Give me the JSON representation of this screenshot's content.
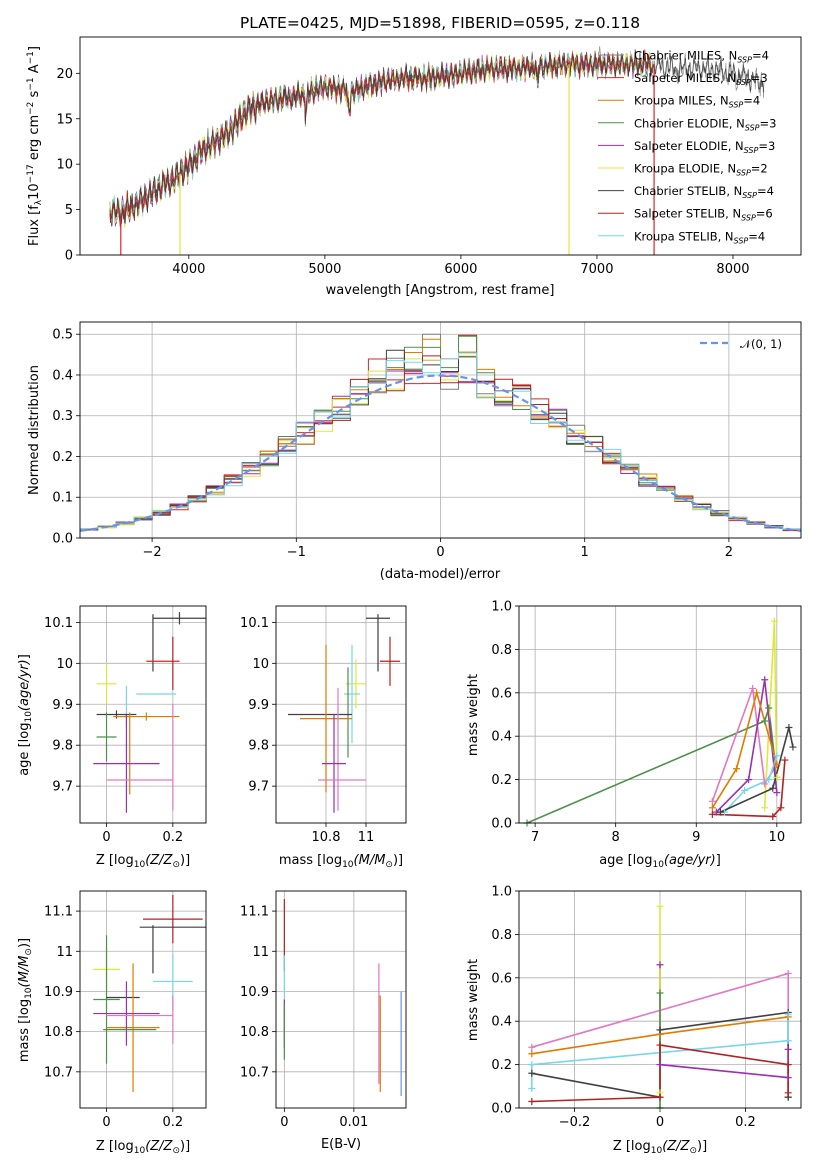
{
  "page": {
    "title": "PLATE=0425, MJD=51898, FIBERID=0595, z=0.118"
  },
  "models": [
    {
      "id": "cm",
      "name": "Chabrier MILES",
      "nssp": "4",
      "color": "#7f7f7f"
    },
    {
      "id": "sm",
      "name": "Salpeter MILES",
      "nssp": "3",
      "color": "#d62728"
    },
    {
      "id": "km",
      "name": "Kroupa MILES",
      "nssp": "4",
      "color": "#e07a00"
    },
    {
      "id": "ce",
      "name": "Chabrier ELODIE",
      "nssp": "3",
      "color": "#4f8f4f"
    },
    {
      "id": "se",
      "name": "Salpeter ELODIE",
      "nssp": "3",
      "color": "#9b30b0"
    },
    {
      "id": "ke",
      "name": "Kroupa ELODIE",
      "nssp": "2",
      "color": "#dce83a"
    },
    {
      "id": "cs",
      "name": "Chabrier STELIB",
      "nssp": "4",
      "color": "#404040"
    },
    {
      "id": "ss",
      "name": "Salpeter STELIB",
      "nssp": "6",
      "color": "#b22222"
    },
    {
      "id": "ks",
      "name": "Kroupa STELIB",
      "nssp": "4",
      "color": "#76d7ea"
    }
  ],
  "chart_data": [
    {
      "id": "spectrum",
      "type": "line",
      "xlabel": "wavelength [Angstrom, rest frame]",
      "ylabel": "Flux [f",
      "xlim": [
        3200,
        8500
      ],
      "ylim": [
        0,
        24
      ],
      "xticks": [
        4000,
        5000,
        6000,
        7000,
        8000
      ],
      "yticks": [
        0,
        5,
        10,
        15,
        20
      ],
      "legend": "top-right",
      "envelope": {
        "x": [
          3400,
          3500,
          3600,
          3700,
          3800,
          3900,
          4000,
          4100,
          4200,
          4300,
          4400,
          4500,
          4600,
          4800,
          5000,
          5200,
          5400,
          5600,
          5800,
          6000,
          6200,
          6400,
          6600,
          6800,
          7000,
          7200,
          7400,
          7600,
          7800,
          8000,
          8200
        ],
        "y": [
          5.0,
          4.6,
          5.5,
          6.5,
          7.5,
          8.5,
          9.8,
          11.5,
          12.5,
          13.5,
          15.5,
          16.5,
          17.0,
          17.5,
          18.5,
          18.0,
          19.0,
          19.5,
          19.5,
          20.0,
          20.5,
          20.5,
          20.8,
          21.0,
          21.0,
          21.0,
          21.0,
          20.5,
          20.5,
          20.0,
          19.0
        ]
      },
      "dropouts": [
        {
          "x": 3500,
          "series": "Salpeter MILES"
        },
        {
          "x": 3935,
          "series": "Kroupa ELODIE"
        },
        {
          "x": 6795,
          "series": "Kroupa ELODIE"
        },
        {
          "x": 7420,
          "series": "Salpeter MILES"
        }
      ]
    },
    {
      "id": "residuals",
      "type": "line",
      "xlabel": "(data-model)/error",
      "ylabel": "Normed distribution",
      "xlim": [
        -2.5,
        2.5
      ],
      "ylim": [
        0,
        0.53
      ],
      "xticks": [
        -2,
        -1,
        0,
        1,
        2
      ],
      "yticks": [
        0.0,
        0.1,
        0.2,
        0.3,
        0.4,
        0.5
      ],
      "grid": true,
      "legend": "top-right",
      "legend_label": "𝒩(0, 1)",
      "reference_curve": {
        "name": "𝒩(0, 1)",
        "mean": 0,
        "sigma": 1,
        "color": "#6495ed"
      },
      "hist_bin_width": 0.125
    },
    {
      "id": "age_vs_Z",
      "type": "scatter",
      "xlabel": "Z [log",
      "ylabel": "age  [log",
      "xlim": [
        -0.08,
        0.3
      ],
      "ylim": [
        9.61,
        10.14
      ],
      "xticks": [
        0.0,
        0.2
      ],
      "yticks": [
        9.7,
        9.8,
        9.9,
        10.0,
        10.1
      ],
      "grid": true,
      "points": [
        {
          "x": 0.22,
          "y": 10.11,
          "xerr": 0.08,
          "yerr": 0.015,
          "color": "#404040"
        },
        {
          "x": 0.14,
          "y": 10.05,
          "xerr": 0.001,
          "yerr": 0.07,
          "color": "#404040"
        },
        {
          "x": 0.17,
          "y": 10.005,
          "xerr": 0.05,
          "yerr": 0.001,
          "color": "#d62728"
        },
        {
          "x": 0.2,
          "y": 10.0,
          "xerr": 0.001,
          "yerr": 0.065,
          "color": "#b22222"
        },
        {
          "x": 0.0,
          "y": 9.95,
          "xerr": 0.03,
          "yerr": 0.05,
          "color": "#dce83a"
        },
        {
          "x": 0.15,
          "y": 9.925,
          "xerr": 0.06,
          "yerr": 0.001,
          "color": "#76d7ea"
        },
        {
          "x": 0.06,
          "y": 9.895,
          "xerr": 0.001,
          "yerr": 0.05,
          "color": "#76d7ea"
        },
        {
          "x": 0.03,
          "y": 9.875,
          "xerr": 0.06,
          "yerr": 0.01,
          "color": "#404040"
        },
        {
          "x": 0.0,
          "y": 9.82,
          "xerr": 0.03,
          "yerr": 0.06,
          "color": "#4f8f4f"
        },
        {
          "x": 0.12,
          "y": 9.87,
          "xerr": 0.1,
          "yerr": 0.01,
          "color": "#e07a00"
        },
        {
          "x": 0.07,
          "y": 9.78,
          "xerr": 0.001,
          "yerr": 0.1,
          "color": "#e07a00"
        },
        {
          "x": 0.2,
          "y": 9.77,
          "xerr": 0.001,
          "yerr": 0.13,
          "color": "#e377c2"
        },
        {
          "x": 0.06,
          "y": 9.755,
          "xerr": 0.1,
          "yerr": 0.12,
          "color": "#9b30b0"
        },
        {
          "x": 0.1,
          "y": 9.715,
          "xerr": 0.1,
          "yerr": 0.001,
          "color": "#e377c2"
        }
      ]
    },
    {
      "id": "age_vs_mass",
      "type": "scatter",
      "xlabel": "mass [log",
      "ylabel": "",
      "xlim": [
        10.55,
        11.2
      ],
      "ylim": [
        9.61,
        10.14
      ],
      "xticks": [
        10.8,
        11.0
      ],
      "yticks": [
        9.7,
        9.8,
        9.9,
        10.0,
        10.1
      ],
      "grid": true,
      "points": [
        {
          "x": 11.06,
          "y": 10.11,
          "xerr": 0.06,
          "yerr": 0.001,
          "color": "#404040"
        },
        {
          "x": 11.06,
          "y": 10.05,
          "xerr": 0.001,
          "yerr": 0.07,
          "color": "#404040"
        },
        {
          "x": 11.12,
          "y": 10.005,
          "xerr": 0.05,
          "yerr": 0.06,
          "color": "#b22222"
        },
        {
          "x": 10.95,
          "y": 9.95,
          "xerr": 0.05,
          "yerr": 0.06,
          "color": "#dce83a"
        },
        {
          "x": 10.93,
          "y": 9.925,
          "xerr": 0.04,
          "yerr": 0.12,
          "color": "#76d7ea"
        },
        {
          "x": 10.91,
          "y": 9.88,
          "xerr": 0.001,
          "yerr": 0.11,
          "color": "#4f8f4f"
        },
        {
          "x": 10.77,
          "y": 9.875,
          "xerr": 0.16,
          "yerr": 0.001,
          "color": "#404040"
        },
        {
          "x": 10.8,
          "y": 9.865,
          "xerr": 0.13,
          "yerr": 0.18,
          "color": "#e07a00"
        },
        {
          "x": 10.86,
          "y": 9.79,
          "xerr": 0.001,
          "yerr": 0.15,
          "color": "#e377c2"
        },
        {
          "x": 10.84,
          "y": 9.755,
          "xerr": 0.06,
          "yerr": 0.12,
          "color": "#9b30b0"
        },
        {
          "x": 10.88,
          "y": 9.715,
          "xerr": 0.12,
          "yerr": 0.001,
          "color": "#e377c2"
        }
      ]
    },
    {
      "id": "weight_vs_age",
      "type": "line",
      "xlabel": "age  [log",
      "ylabel": "mass weight",
      "xlim": [
        6.8,
        10.3
      ],
      "ylim": [
        0.0,
        1.0
      ],
      "xticks": [
        7,
        8,
        9,
        10
      ],
      "yticks": [
        0.0,
        0.2,
        0.4,
        0.6,
        0.8,
        1.0
      ],
      "grid": true,
      "series": [
        {
          "color": "#4f8f4f",
          "x": [
            6.9,
            9.85,
            9.9,
            10.0
          ],
          "y": [
            0.0,
            0.47,
            0.53,
            0.21
          ]
        },
        {
          "color": "#dce83a",
          "x": [
            9.85,
            9.97,
            10.0
          ],
          "y": [
            0.07,
            0.93,
            0.21
          ]
        },
        {
          "color": "#e377c2",
          "x": [
            9.2,
            9.7,
            9.85,
            10.0
          ],
          "y": [
            0.1,
            0.62,
            0.18,
            0.27
          ]
        },
        {
          "color": "#9b30b0",
          "x": [
            9.25,
            9.65,
            9.85,
            10.0
          ],
          "y": [
            0.05,
            0.2,
            0.66,
            0.14
          ]
        },
        {
          "color": "#e07a00",
          "x": [
            9.2,
            9.5,
            9.75,
            10.0
          ],
          "y": [
            0.07,
            0.25,
            0.6,
            0.27
          ]
        },
        {
          "color": "#76d7ea",
          "x": [
            9.35,
            9.6,
            9.9,
            10.0
          ],
          "y": [
            0.05,
            0.15,
            0.2,
            0.31
          ]
        },
        {
          "color": "#404040",
          "x": [
            9.3,
            9.95,
            10.15,
            10.2
          ],
          "y": [
            0.05,
            0.16,
            0.44,
            0.35
          ]
        },
        {
          "color": "#b22222",
          "x": [
            9.2,
            9.95,
            10.05,
            10.1
          ],
          "y": [
            0.04,
            0.03,
            0.07,
            0.29
          ]
        }
      ]
    },
    {
      "id": "mass_vs_Z",
      "type": "scatter",
      "xlabel": "Z [log",
      "ylabel": "mass [log",
      "xlim": [
        -0.08,
        0.3
      ],
      "ylim": [
        10.61,
        11.15
      ],
      "xticks": [
        0.0,
        0.2
      ],
      "yticks": [
        10.7,
        10.8,
        10.9,
        11.0,
        11.1
      ],
      "grid": true,
      "points": [
        {
          "x": 0.2,
          "y": 11.08,
          "xerr": 0.09,
          "yerr": 0.06,
          "color": "#b22222"
        },
        {
          "x": 0.2,
          "y": 11.06,
          "xerr": 0.1,
          "yerr": 0.001,
          "color": "#404040"
        },
        {
          "x": 0.14,
          "y": 11.005,
          "xerr": 0.001,
          "yerr": 0.06,
          "color": "#404040"
        },
        {
          "x": 0.0,
          "y": 10.955,
          "xerr": 0.04,
          "yerr": 0.05,
          "color": "#dce83a"
        },
        {
          "x": 0.2,
          "y": 10.925,
          "xerr": 0.06,
          "yerr": 0.07,
          "color": "#76d7ea"
        },
        {
          "x": 0.0,
          "y": 10.88,
          "xerr": 0.04,
          "yerr": 0.16,
          "color": "#4f8f4f"
        },
        {
          "x": 0.05,
          "y": 10.885,
          "xerr": 0.05,
          "yerr": 0.001,
          "color": "#404040"
        },
        {
          "x": 0.08,
          "y": 10.81,
          "xerr": 0.08,
          "yerr": 0.16,
          "color": "#e07a00"
        },
        {
          "x": 0.2,
          "y": 10.83,
          "xerr": 0.001,
          "yerr": 0.06,
          "color": "#e377c2"
        },
        {
          "x": 0.06,
          "y": 10.845,
          "xerr": 0.1,
          "yerr": 0.08,
          "color": "#9b30b0"
        },
        {
          "x": 0.1,
          "y": 10.84,
          "xerr": 0.1,
          "yerr": 0.001,
          "color": "#e377c2"
        },
        {
          "x": 0.07,
          "y": 10.805,
          "xerr": 0.08,
          "yerr": 0.001,
          "color": "#4f8f4f"
        }
      ]
    },
    {
      "id": "mass_vs_EBV",
      "type": "scatter",
      "xlabel": "E(B-V)",
      "ylabel": "",
      "xlim": [
        -0.0012,
        0.0175
      ],
      "ylim": [
        10.61,
        11.15
      ],
      "xticks": [
        0.0,
        0.01
      ],
      "yticks": [
        10.7,
        10.8,
        10.9,
        11.0,
        11.1
      ],
      "grid": true,
      "points": [
        {
          "x": 0.0,
          "y": 11.04,
          "xerr": 0.0,
          "yerr": 0.09,
          "color": "#b22222"
        },
        {
          "x": 0.0,
          "y": 10.92,
          "xerr": 0.0,
          "yerr": 0.07,
          "color": "#76d7ea"
        },
        {
          "x": 0.0,
          "y": 10.82,
          "xerr": 0.0,
          "yerr": 0.06,
          "color": "#9b30b0"
        },
        {
          "x": 0.0,
          "y": 10.8,
          "xerr": 0.0,
          "yerr": 0.07,
          "color": "#4f8f4f"
        },
        {
          "x": 0.0136,
          "y": 10.82,
          "xerr": 0.0,
          "yerr": 0.15,
          "color": "#e377c2"
        },
        {
          "x": 0.0138,
          "y": 10.77,
          "xerr": 0.0,
          "yerr": 0.12,
          "color": "#e07a00"
        },
        {
          "x": 0.0168,
          "y": 10.77,
          "xerr": 0.0,
          "yerr": 0.13,
          "color": "#6495ed"
        }
      ]
    },
    {
      "id": "weight_vs_Z",
      "type": "line",
      "xlabel": "Z [log",
      "ylabel": "mass weight",
      "xlim": [
        -0.33,
        0.33
      ],
      "ylim": [
        0.0,
        1.0
      ],
      "xticks": [
        -0.2,
        0.0,
        0.2
      ],
      "yticks": [
        0.0,
        0.2,
        0.4,
        0.6,
        0.8,
        1.0
      ],
      "grid": true,
      "series": [
        {
          "color": "#e377c2",
          "x": [
            -0.3,
            0.3,
            0.3
          ],
          "y": [
            0.28,
            0.62,
            0.05
          ]
        },
        {
          "color": "#e07a00",
          "x": [
            -0.3,
            0.0,
            0.3,
            0.3
          ],
          "y": [
            0.25,
            0.34,
            0.42,
            0.05
          ]
        },
        {
          "color": "#404040",
          "x": [
            -0.3,
            0.0,
            0.0,
            0.3,
            0.3
          ],
          "y": [
            0.16,
            0.05,
            0.36,
            0.44,
            0.05
          ]
        },
        {
          "color": "#76d7ea",
          "x": [
            -0.3,
            -0.3,
            0.3,
            0.3
          ],
          "y": [
            0.09,
            0.2,
            0.31,
            0.43
          ]
        },
        {
          "color": "#9b30b0",
          "x": [
            0.0,
            0.0,
            0.3,
            0.3
          ],
          "y": [
            0.66,
            0.2,
            0.14,
            0.27
          ]
        },
        {
          "color": "#dce83a",
          "x": [
            0.0,
            0.0
          ],
          "y": [
            0.93,
            0.07
          ]
        },
        {
          "color": "#4f8f4f",
          "x": [
            0.0,
            0.0
          ],
          "y": [
            0.53,
            0.0
          ]
        },
        {
          "color": "#b22222",
          "x": [
            -0.3,
            0.0,
            0.0,
            0.3,
            0.3
          ],
          "y": [
            0.03,
            0.05,
            0.29,
            0.2,
            0.07
          ]
        }
      ]
    }
  ]
}
